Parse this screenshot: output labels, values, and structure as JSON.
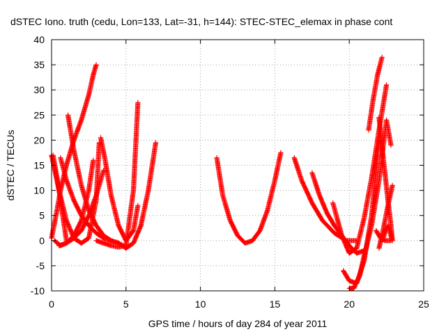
{
  "chart_data": {
    "type": "scatter",
    "title": "dSTEC Iono. truth (cedu, Lon=133, Lat=-31, h=144): STEC-STEC_elemax in phase cont",
    "xlabel": "GPS time / hours of day 284 of year 2011",
    "ylabel": "dSTEC  / TECUs",
    "xlim": [
      0,
      25
    ],
    "ylim": [
      -10,
      40
    ],
    "xticks": [
      0,
      5,
      10,
      15,
      20,
      25
    ],
    "yticks": [
      -10,
      -5,
      0,
      5,
      10,
      15,
      20,
      25,
      30,
      35,
      40
    ],
    "xtick_labels": [
      "0",
      "5",
      "10",
      "15",
      "20",
      "25"
    ],
    "ytick_labels": [
      "-10",
      "-5",
      "0",
      "5",
      "10",
      "15",
      "20",
      "25",
      "30",
      "35",
      "40"
    ],
    "grid": true,
    "marker": "plus",
    "color": "#ff0000",
    "series": [
      {
        "x": [
          0.0,
          0.3,
          0.6,
          1.0,
          1.5,
          2.0,
          2.5,
          2.8,
          3.0
        ],
        "y": [
          0.5,
          5.0,
          10.0,
          15.0,
          20.0,
          24.0,
          29.0,
          33.0,
          35.0
        ]
      },
      {
        "x": [
          0.0,
          0.5,
          1.0,
          1.5,
          2.0,
          2.5,
          3.0,
          3.2
        ],
        "y": [
          17.0,
          10.0,
          4.0,
          0.5,
          -0.5,
          0.5,
          8.0,
          19.5
        ]
      },
      {
        "x": [
          0.6,
          1.0,
          1.5,
          2.0,
          2.5,
          3.0,
          3.5,
          4.0,
          4.5,
          4.8
        ],
        "y": [
          16.5,
          12.0,
          8.0,
          5.0,
          3.0,
          1.5,
          0.5,
          0.0,
          -0.5,
          -1.0
        ]
      },
      {
        "x": [
          1.1,
          1.5,
          2.0,
          2.5,
          3.0,
          3.5,
          4.0,
          4.5,
          5.0
        ],
        "y": [
          25.0,
          18.0,
          11.0,
          6.0,
          3.0,
          1.0,
          0.0,
          -0.5,
          -1.5
        ]
      },
      {
        "x": [
          0.1,
          0.4,
          0.7,
          1.0
        ],
        "y": [
          17.0,
          12.0,
          6.0,
          0.0
        ]
      },
      {
        "x": [
          0.2,
          0.6,
          1.0,
          1.5,
          2.0,
          2.5,
          2.8
        ],
        "y": [
          0.0,
          -1.0,
          -0.5,
          1.0,
          4.0,
          10.0,
          16.0
        ]
      },
      {
        "x": [
          0.5,
          1.0,
          1.5,
          2.0,
          2.5,
          3.0,
          3.5
        ],
        "y": [
          -1.0,
          -0.5,
          0.5,
          2.0,
          5.0,
          9.0,
          14.0
        ]
      },
      {
        "x": [
          3.3,
          3.6,
          4.0,
          4.5,
          5.0,
          5.5,
          5.8
        ],
        "y": [
          20.5,
          16.0,
          9.0,
          3.0,
          0.0,
          2.0,
          7.0
        ]
      },
      {
        "x": [
          3.0,
          3.5,
          4.0,
          4.5,
          5.0,
          5.5,
          5.8
        ],
        "y": [
          0.0,
          -0.5,
          -1.0,
          -1.3,
          -1.0,
          10.0,
          27.5
        ]
      },
      {
        "x": [
          5.0,
          5.5,
          6.0,
          6.5,
          7.0
        ],
        "y": [
          -1.5,
          -0.5,
          3.0,
          10.0,
          19.5
        ]
      },
      {
        "x": [
          11.1,
          11.5,
          12.0,
          12.5,
          13.0,
          13.5,
          14.0,
          14.5,
          15.0,
          15.4
        ],
        "y": [
          16.5,
          9.0,
          4.0,
          1.0,
          -0.5,
          0.0,
          2.0,
          6.0,
          12.0,
          17.5
        ]
      },
      {
        "x": [
          16.3,
          16.8,
          17.5,
          18.2,
          19.0,
          19.8,
          20.5
        ],
        "y": [
          16.5,
          12.0,
          7.5,
          4.0,
          1.5,
          0.0,
          0.0
        ]
      },
      {
        "x": [
          17.5,
          18.0,
          18.5,
          19.0,
          19.5,
          20.0,
          20.5,
          21.0
        ],
        "y": [
          13.5,
          9.0,
          5.5,
          3.0,
          1.0,
          -1.0,
          -2.5,
          -2.0
        ]
      },
      {
        "x": [
          18.9,
          19.5,
          20.0,
          20.5,
          21.0,
          21.5,
          22.0,
          22.5
        ],
        "y": [
          7.5,
          1.0,
          -2.5,
          -1.5,
          4.5,
          12.5,
          22.0,
          31.0
        ]
      },
      {
        "x": [
          19.6,
          20.0,
          20.5,
          21.0,
          21.5,
          22.0
        ],
        "y": [
          -6.0,
          -8.0,
          -8.5,
          -4.0,
          5.0,
          20.0
        ]
      },
      {
        "x": [
          20.0,
          20.3,
          20.7,
          21.0,
          21.5,
          22.0,
          22.5,
          22.8
        ],
        "y": [
          -9.5,
          -9.5,
          -7.0,
          -3.0,
          3.0,
          12.0,
          24.0,
          19.0
        ]
      },
      {
        "x": [
          21.3,
          21.6,
          21.9,
          22.2
        ],
        "y": [
          22.0,
          28.0,
          33.0,
          36.5
        ]
      },
      {
        "x": [
          21.8,
          22.1,
          22.4,
          22.8
        ],
        "y": [
          2.0,
          0.5,
          0.0,
          0.0
        ]
      },
      {
        "x": [
          22.0,
          22.3,
          22.6,
          22.8,
          22.9
        ],
        "y": [
          24.5,
          16.0,
          8.0,
          3.0,
          0.0
        ]
      },
      {
        "x": [
          22.0,
          22.3,
          22.6,
          22.9
        ],
        "y": [
          -1.5,
          2.5,
          7.0,
          11.0
        ]
      },
      {
        "x": [
          22.2,
          22.6,
          22.9
        ],
        "y": [
          0.0,
          3.0,
          0.0
        ]
      }
    ]
  }
}
